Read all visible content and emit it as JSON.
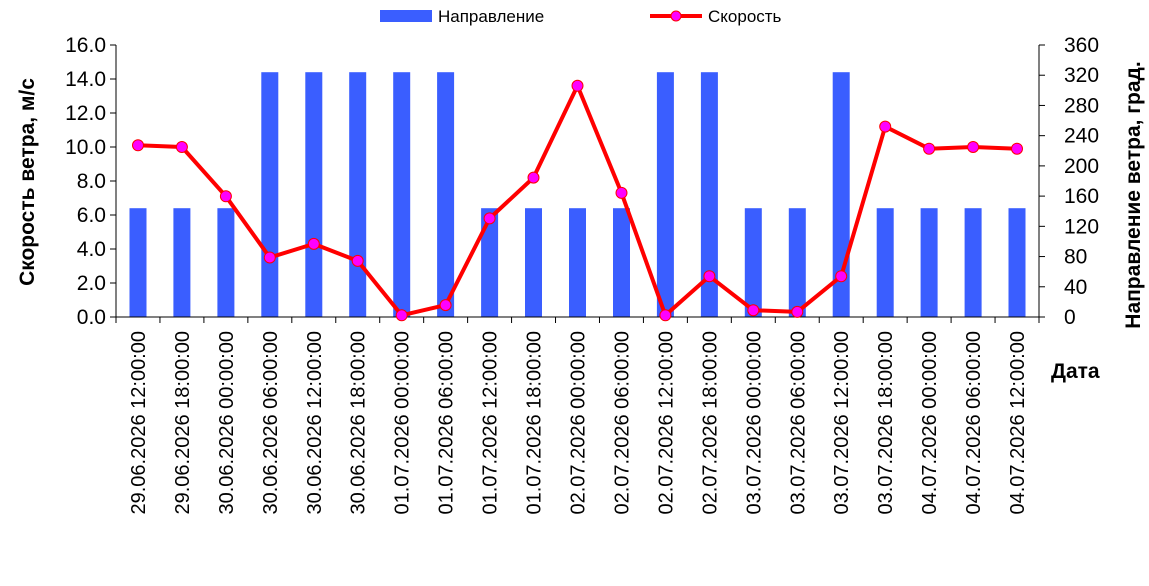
{
  "chart_data": {
    "type": "bar",
    "xlabel": "Дата",
    "ylabel_left": "Скорость ветра, м/с",
    "ylabel_right": "Направление ветра, град.",
    "ylim_left": [
      0,
      16
    ],
    "ylim_right": [
      0,
      360
    ],
    "yticks_left": [
      "0.0",
      "2.0",
      "4.0",
      "6.0",
      "8.0",
      "10.0",
      "12.0",
      "14.0",
      "16.0"
    ],
    "yticks_right": [
      "0",
      "40",
      "80",
      "120",
      "160",
      "200",
      "240",
      "280",
      "320",
      "360"
    ],
    "legend_position": "top",
    "grid": false,
    "categories": [
      "29.06.2026 12:00:00",
      "29.06.2026 18:00:00",
      "30.06.2026 00:00:00",
      "30.06.2026 06:00:00",
      "30.06.2026 12:00:00",
      "30.06.2026 18:00:00",
      "01.07.2026 00:00:00",
      "01.07.2026 06:00:00",
      "01.07.2026 12:00:00",
      "01.07.2026 18:00:00",
      "02.07.2026 00:00:00",
      "02.07.2026 06:00:00",
      "02.07.2026 12:00:00",
      "02.07.2026 18:00:00",
      "03.07.2026 00:00:00",
      "03.07.2026 06:00:00",
      "03.07.2026 12:00:00",
      "03.07.2026 18:00:00",
      "04.07.2026 00:00:00",
      "04.07.2026 06:00:00",
      "04.07.2026 12:00:00"
    ],
    "series": [
      {
        "name": "Направление",
        "type": "bar",
        "axis": "right",
        "color": "#3A5EFF",
        "values": [
          144,
          144,
          144,
          324,
          324,
          324,
          324,
          324,
          144,
          144,
          144,
          144,
          324,
          324,
          144,
          144,
          324,
          144,
          144,
          144,
          144
        ]
      },
      {
        "name": "Скорость",
        "type": "line",
        "axis": "left",
        "color": "#FF0000",
        "marker_color": "#FF00FF",
        "values": [
          10.1,
          10.0,
          7.1,
          3.5,
          4.3,
          3.3,
          0.1,
          0.7,
          5.8,
          8.2,
          13.6,
          7.3,
          0.1,
          2.4,
          0.4,
          0.3,
          2.4,
          11.2,
          9.9,
          10.0,
          9.9
        ]
      }
    ]
  }
}
